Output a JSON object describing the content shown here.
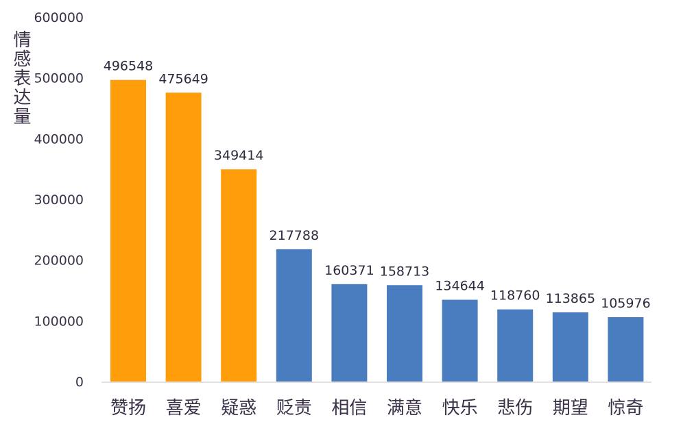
{
  "chart_data": {
    "type": "bar",
    "title": "",
    "xlabel": "",
    "ylabel": "情感表达量",
    "ylim": [
      0,
      600000
    ],
    "yticks": [
      0,
      100000,
      200000,
      300000,
      400000,
      500000,
      600000
    ],
    "grid": false,
    "categories": [
      "赞扬",
      "喜爱",
      "疑惑",
      "贬责",
      "相信",
      "满意",
      "快乐",
      "悲伤",
      "期望",
      "惊奇"
    ],
    "values": [
      496548,
      475649,
      349414,
      217788,
      160371,
      158713,
      134644,
      118760,
      113865,
      105976
    ],
    "highlight_count": 3,
    "colors": {
      "highlight": "#FF9E0A",
      "normal": "#4A7DC0",
      "text": "#3b3148",
      "axis": "#d9d9d9"
    }
  }
}
